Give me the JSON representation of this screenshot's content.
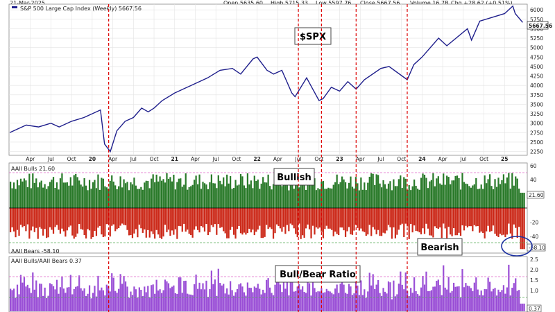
{
  "header": {
    "date": "21-Mar-2025",
    "open": "Open 5635.60",
    "high": "High 5715.33",
    "low": "Low 5597.76",
    "close": "Close 5667.56",
    "volume": "Volume 16.7B",
    "chg": "Chg +28.62 (+0.51%)"
  },
  "chart_data": [
    {
      "type": "line",
      "legend": "S&P 500 Large Cap Index (Weekly) 5667.56",
      "callout": "$SPX",
      "last_value_label": "5667.56",
      "color": "#1f1f8c",
      "yticks": [
        2250,
        2500,
        2750,
        3000,
        3250,
        3500,
        3750,
        4000,
        4250,
        4500,
        4750,
        5000,
        5250,
        5500,
        5750,
        6000
      ],
      "ylim": [
        2150,
        6150
      ],
      "xtick_labels": [
        "Apr",
        "Jul",
        "Oct",
        "20",
        "Apr",
        "Jul",
        "Oct",
        "21",
        "Apr",
        "Jul",
        "Oct",
        "22",
        "Apr",
        "Jul",
        "Oct",
        "23",
        "Apr",
        "Jul",
        "Oct",
        "24",
        "Apr",
        "Jul",
        "Oct",
        "25"
      ],
      "xtick_time": [
        2019.25,
        2019.5,
        2019.75,
        2020.0,
        2020.25,
        2020.5,
        2020.75,
        2021.0,
        2021.25,
        2021.5,
        2021.75,
        2022.0,
        2022.25,
        2022.5,
        2022.75,
        2023.0,
        2023.25,
        2023.5,
        2023.75,
        2024.0,
        2024.25,
        2024.5,
        2024.75,
        2025.0
      ],
      "time": [
        2019.0,
        2019.2,
        2019.35,
        2019.5,
        2019.6,
        2019.75,
        2019.9,
        2020.1,
        2020.15,
        2020.22,
        2020.3,
        2020.4,
        2020.5,
        2020.6,
        2020.68,
        2020.75,
        2020.85,
        2021.0,
        2021.2,
        2021.4,
        2021.55,
        2021.7,
        2021.8,
        2021.95,
        2022.0,
        2022.12,
        2022.2,
        2022.3,
        2022.42,
        2022.46,
        2022.6,
        2022.75,
        2022.8,
        2022.9,
        2023.0,
        2023.1,
        2023.2,
        2023.3,
        2023.5,
        2023.6,
        2023.82,
        2023.9,
        2024.0,
        2024.2,
        2024.3,
        2024.55,
        2024.6,
        2024.7,
        2024.85,
        2025.0,
        2025.1,
        2025.13,
        2025.22
      ],
      "values": [
        2750,
        2950,
        2900,
        3000,
        2900,
        3050,
        3150,
        3350,
        2450,
        2250,
        2800,
        3050,
        3150,
        3400,
        3300,
        3400,
        3600,
        3800,
        4000,
        4200,
        4400,
        4450,
        4300,
        4700,
        4750,
        4400,
        4300,
        4400,
        3800,
        3700,
        4200,
        3600,
        3650,
        3950,
        3850,
        4100,
        3900,
        4150,
        4450,
        4500,
        4150,
        4550,
        4750,
        5250,
        5050,
        5500,
        5200,
        5700,
        5800,
        5900,
        6100,
        5900,
        5667.56
      ]
    },
    {
      "type": "bar",
      "legend": "AAII Bulls 21.60",
      "callout": "Bullish",
      "last_value_label": "21.60",
      "color": "#2a7a2a",
      "yticks": [
        60,
        40,
        20
      ],
      "ref_line": 50,
      "last_value": 21.6
    },
    {
      "type": "bar",
      "legend": "AAII Bears -58.10",
      "callout": "Bearish",
      "last_value_label": "-58.10",
      "color": "#cc2a1a",
      "yticks": [
        -20,
        -40
      ],
      "ref_line": -40,
      "last_value": -58.1
    },
    {
      "type": "bar",
      "legend": "AAII Bulls/AAII Bears 0.37",
      "callout": "Bull/Bear Ratio",
      "last_value_label": "0.37",
      "color": "#9a4fd6",
      "yticks": [
        2.5,
        2.0,
        1.5,
        1.0
      ],
      "ref_lines": [
        2.0,
        1.0
      ],
      "last_value": 0.37
    }
  ],
  "event_markers": [
    2020.2,
    2022.5,
    2022.78,
    2023.2,
    2023.82
  ]
}
